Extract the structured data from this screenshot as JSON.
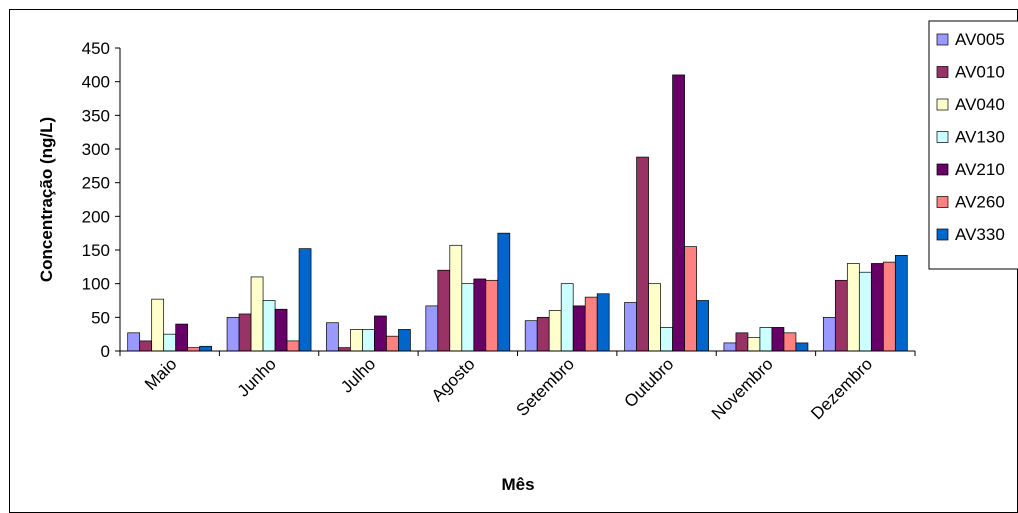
{
  "chart_data": {
    "type": "bar",
    "xlabel": "Mês",
    "ylabel": "Concentração (ng/L)",
    "ylim": [
      0,
      450
    ],
    "yticks": [
      "0",
      "50",
      "100",
      "150",
      "200",
      "250",
      "300",
      "350",
      "400",
      "450"
    ],
    "grid": false,
    "legend_position": "right",
    "categories": [
      "Maio",
      "Junho",
      "Julho",
      "Agosto",
      "Setembro",
      "Outubro",
      "Novembro",
      "Dezembro"
    ],
    "series": [
      {
        "name": "AV005",
        "color": "#9999FF",
        "values": [
          27,
          50,
          42,
          67,
          45,
          72,
          12,
          50
        ]
      },
      {
        "name": "AV010",
        "color": "#993366",
        "values": [
          15,
          55,
          5,
          120,
          50,
          288,
          27,
          105
        ]
      },
      {
        "name": "AV040",
        "color": "#FFFFCC",
        "values": [
          77,
          110,
          32,
          157,
          60,
          100,
          20,
          130
        ]
      },
      {
        "name": "AV130",
        "color": "#CCFFFF",
        "values": [
          25,
          75,
          32,
          100,
          100,
          35,
          35,
          117
        ]
      },
      {
        "name": "AV210",
        "color": "#660066",
        "values": [
          40,
          62,
          52,
          107,
          67,
          410,
          35,
          130
        ]
      },
      {
        "name": "AV260",
        "color": "#FF8080",
        "values": [
          5,
          15,
          22,
          105,
          80,
          155,
          27,
          132
        ]
      },
      {
        "name": "AV330",
        "color": "#0066CC",
        "values": [
          7,
          152,
          32,
          175,
          85,
          75,
          12,
          142
        ]
      }
    ]
  }
}
